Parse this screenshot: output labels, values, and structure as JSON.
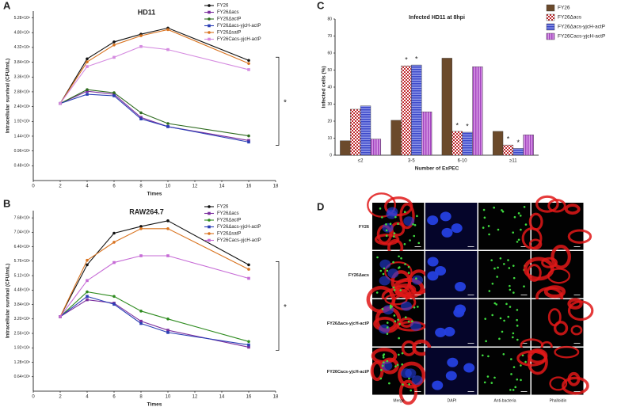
{
  "chart_data": [
    {
      "type": "line",
      "panel": "A",
      "title": "HD11",
      "x_label": "Times",
      "y_label": "Intracellular survival (CFU/mL)",
      "x": [
        2,
        4,
        6,
        8,
        10,
        16
      ],
      "xlim": [
        0,
        18
      ],
      "xticks": [
        0,
        2,
        4,
        6,
        8,
        10,
        12,
        14,
        16,
        18
      ],
      "ylim": [
        0,
        550000000
      ],
      "yticks": [
        {
          "value": 48000000,
          "label": "0.48×10⁸"
        },
        {
          "value": 96000000,
          "label": "0.96×10⁸"
        },
        {
          "value": 144000000,
          "label": "1.44×10⁸"
        },
        {
          "value": 192000000,
          "label": "1.92×10⁸"
        },
        {
          "value": 240000000,
          "label": "2.40×10⁸"
        },
        {
          "value": 288000000,
          "label": "2.88×10⁸"
        },
        {
          "value": 336000000,
          "label": "3.36×10⁸"
        },
        {
          "value": 384000000,
          "label": "3.84×10⁸"
        },
        {
          "value": 432000000,
          "label": "4.32×10⁸"
        },
        {
          "value": 480000000,
          "label": "4.80×10⁸"
        },
        {
          "value": 528000000,
          "label": "5.28×10⁸"
        }
      ],
      "annotation": "*",
      "series": [
        {
          "name": "FY26",
          "color": "#111111",
          "values": [
            250000000,
            395000000,
            450000000,
            475000000,
            495000000,
            390000000
          ]
        },
        {
          "name": "FY26Δacs",
          "color": "#7b2f9e",
          "values": [
            250000000,
            290000000,
            280000000,
            205000000,
            175000000,
            130000000
          ]
        },
        {
          "name": "FY26ΔactP",
          "color": "#2e6b1f",
          "values": [
            250000000,
            295000000,
            285000000,
            220000000,
            185000000,
            145000000
          ]
        },
        {
          "name": "FY26Δacs-yjcH-actP",
          "color": "#2b3fb5",
          "values": [
            250000000,
            280000000,
            275000000,
            200000000,
            175000000,
            125000000
          ]
        },
        {
          "name": "FY26ΔsatP",
          "color": "#d9731f",
          "values": [
            250000000,
            385000000,
            440000000,
            470000000,
            490000000,
            380000000
          ]
        },
        {
          "name": "FY26Cacs-yjcH-actP",
          "color": "#d58be0",
          "values": [
            250000000,
            370000000,
            400000000,
            435000000,
            425000000,
            360000000
          ]
        }
      ]
    },
    {
      "type": "line",
      "panel": "B",
      "title": "RAW264.7",
      "x_label": "Times",
      "y_label": "Intracellular survival (CFU/mL)",
      "x": [
        2,
        4,
        6,
        8,
        10,
        16
      ],
      "xlim": [
        0,
        18
      ],
      "xticks": [
        0,
        2,
        4,
        6,
        8,
        10,
        12,
        14,
        16,
        18
      ],
      "ylim": [
        0,
        800000000
      ],
      "yticks": [
        {
          "value": 64000000,
          "label": "0.64×10⁸"
        },
        {
          "value": 128000000,
          "label": "1.28×10⁸"
        },
        {
          "value": 192000000,
          "label": "1.92×10⁸"
        },
        {
          "value": 256000000,
          "label": "2.56×10⁸"
        },
        {
          "value": 320000000,
          "label": "3.20×10⁸"
        },
        {
          "value": 384000000,
          "label": "3.84×10⁸"
        },
        {
          "value": 448000000,
          "label": "4.48×10⁸"
        },
        {
          "value": 512000000,
          "label": "5.12×10⁸"
        },
        {
          "value": 576000000,
          "label": "5.76×10⁸"
        },
        {
          "value": 640000000,
          "label": "6.40×10⁸"
        },
        {
          "value": 704000000,
          "label": "7.04×10⁸"
        },
        {
          "value": 768000000,
          "label": "7.68×10⁸"
        }
      ],
      "annotation": "*",
      "series": [
        {
          "name": "FY26",
          "color": "#111111",
          "values": [
            330000000,
            560000000,
            700000000,
            730000000,
            755000000,
            560000000
          ]
        },
        {
          "name": "FY26Δacs",
          "color": "#7b2f9e",
          "values": [
            330000000,
            405000000,
            390000000,
            310000000,
            270000000,
            195000000
          ]
        },
        {
          "name": "FY26ΔactP",
          "color": "#2e8b1f",
          "values": [
            330000000,
            440000000,
            420000000,
            355000000,
            320000000,
            220000000
          ]
        },
        {
          "name": "FY26Δacs-yjcH-actP",
          "color": "#2b3fb5",
          "values": [
            330000000,
            420000000,
            385000000,
            300000000,
            260000000,
            205000000
          ]
        },
        {
          "name": "FY26ΔsatP",
          "color": "#d9731f",
          "values": [
            330000000,
            580000000,
            660000000,
            720000000,
            720000000,
            540000000
          ]
        },
        {
          "name": "FY26Cacs-yjcH-actP",
          "color": "#c66bd6",
          "values": [
            330000000,
            490000000,
            570000000,
            600000000,
            600000000,
            500000000
          ]
        }
      ]
    },
    {
      "type": "bar",
      "panel": "C",
      "title": "Infected HD11 at 8hpi",
      "x_label": "Number of ExPEC",
      "y_label": "Infected cells (%)",
      "categories": [
        "≤2",
        "3-5",
        "6-10",
        "≥11"
      ],
      "ylim": [
        0,
        80
      ],
      "yticks": [
        0,
        10,
        20,
        30,
        40,
        50,
        60,
        70,
        80
      ],
      "series": [
        {
          "name": "FY26",
          "color": "#6b4a2b",
          "hatch": "none",
          "values": [
            8.5,
            20.5,
            57,
            14
          ]
        },
        {
          "name": "FY26Δacs",
          "color": "#c0282d",
          "hatch": "checker",
          "values": [
            27,
            52.5,
            14,
            6
          ]
        },
        {
          "name": "FY26Δacs-yjcH-actP",
          "color": "#3b48c8",
          "hatch": "hstripe",
          "values": [
            29,
            53,
            13.5,
            4
          ]
        },
        {
          "name": "FY26Cacs-yjcH-actP",
          "color": "#a547c0",
          "hatch": "vstripe",
          "values": [
            9.5,
            25.5,
            52,
            12
          ]
        }
      ],
      "annotations": [
        {
          "text": "*",
          "series": 1,
          "category": 1
        },
        {
          "text": "*",
          "series": 2,
          "category": 1
        },
        {
          "text": "*",
          "series": 1,
          "category": 2
        },
        {
          "text": "*",
          "series": 2,
          "category": 2
        },
        {
          "text": "*",
          "series": 1,
          "category": 3
        },
        {
          "text": "*",
          "series": 2,
          "category": 3
        }
      ]
    }
  ],
  "microscopy": {
    "panel": "D",
    "rows": [
      "FY26",
      "FY26Δacs",
      "FY26Δacs-yjcH-actP",
      "FY26Cacs-yjcH-actP"
    ],
    "columns": [
      "Merge",
      "DAPI",
      "Anti-bacteria",
      "Phalloidin"
    ]
  }
}
